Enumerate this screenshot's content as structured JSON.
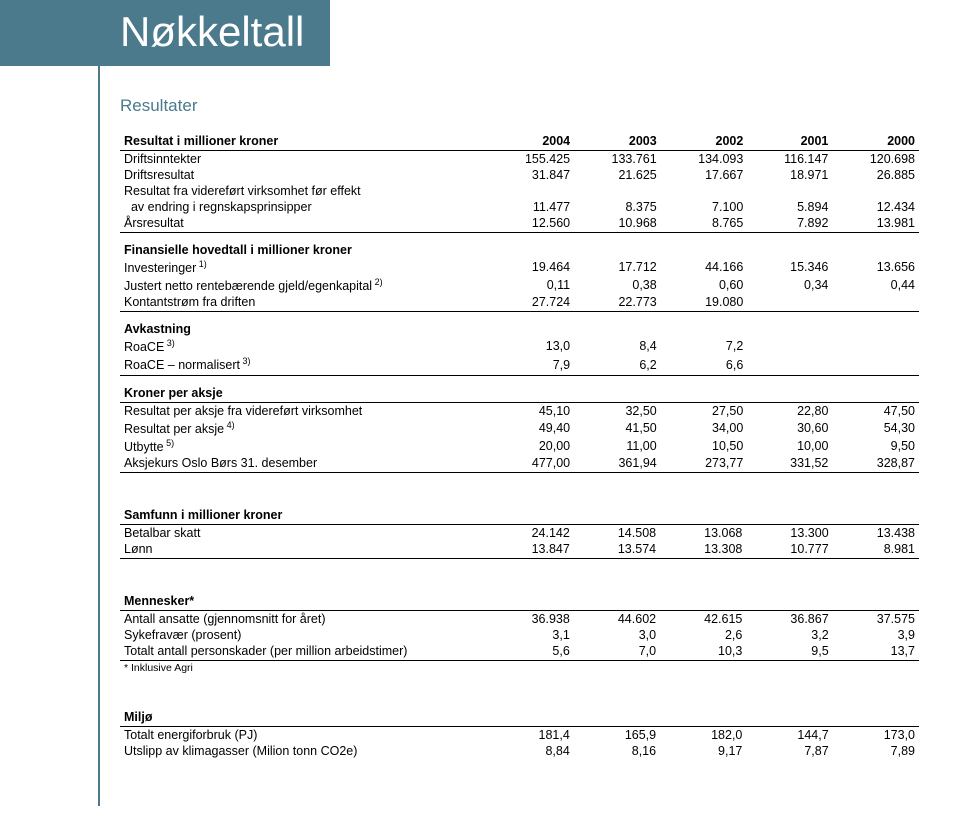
{
  "page": {
    "title": "Nøkkeltall",
    "subtitle": "Resultater",
    "colors": {
      "brand": "#4a7a8c",
      "text": "#000000",
      "bg": "#ffffff",
      "rule": "#000000"
    },
    "fontsizes": {
      "title": 42,
      "subtitle": 17,
      "body": 12.5,
      "note": 10.5
    }
  },
  "years": [
    "2004",
    "2003",
    "2002",
    "2001",
    "2000"
  ],
  "resultat": {
    "header_label": "Resultat i millioner kroner",
    "rows": [
      {
        "label": "Driftsinntekter",
        "v": [
          "155.425",
          "133.761",
          "134.093",
          "116.147",
          "120.698"
        ]
      },
      {
        "label": "Driftsresultat",
        "v": [
          "31.847",
          "21.625",
          "17.667",
          "18.971",
          "26.885"
        ]
      },
      {
        "label": "Resultat fra videreført virksomhet før effekt",
        "v": [
          "",
          "",
          "",
          "",
          ""
        ]
      },
      {
        "label": "  av endring i regnskapsprinsipper",
        "v": [
          "11.477",
          "8.375",
          "7.100",
          "5.894",
          "12.434"
        ]
      },
      {
        "label": "Årsresultat",
        "v": [
          "12.560",
          "10.968",
          "8.765",
          "7.892",
          "13.981"
        ]
      }
    ]
  },
  "finansielle": {
    "header_label": "Finansielle hovedtall i millioner kroner",
    "rows": [
      {
        "label": "Investeringer",
        "sup": "1)",
        "v": [
          "19.464",
          "17.712",
          "44.166",
          "15.346",
          "13.656"
        ]
      },
      {
        "label": "Justert netto rentebærende gjeld/egenkapital",
        "sup": "2)",
        "v": [
          "0,11",
          "0,38",
          "0,60",
          "0,34",
          "0,44"
        ]
      },
      {
        "label": "Kontantstrøm fra driften",
        "v": [
          "27.724",
          "22.773",
          "19.080",
          "",
          ""
        ]
      }
    ]
  },
  "avkastning": {
    "header_label": "Avkastning",
    "rows": [
      {
        "label": "RoaCE",
        "sup": "3)",
        "v": [
          "13,0",
          "8,4",
          "7,2",
          "",
          ""
        ]
      },
      {
        "label": "RoaCE – normalisert",
        "sup": "3)",
        "v": [
          "7,9",
          "6,2",
          "6,6",
          "",
          ""
        ]
      }
    ]
  },
  "kroner_per_aksje": {
    "header_label": "Kroner per aksje",
    "rows": [
      {
        "label": "Resultat per aksje fra videreført virksomhet",
        "v": [
          "45,10",
          "32,50",
          "27,50",
          "22,80",
          "47,50"
        ]
      },
      {
        "label": "Resultat per aksje",
        "sup": "4)",
        "v": [
          "49,40",
          "41,50",
          "34,00",
          "30,60",
          "54,30"
        ]
      },
      {
        "label": "Utbytte",
        "sup": "5)",
        "v": [
          "20,00",
          "11,00",
          "10,50",
          "10,00",
          "9,50"
        ]
      },
      {
        "label": "Aksjekurs Oslo Børs 31. desember",
        "v": [
          "477,00",
          "361,94",
          "273,77",
          "331,52",
          "328,87"
        ]
      }
    ]
  },
  "samfunn": {
    "header_label": "Samfunn i millioner kroner",
    "rows": [
      {
        "label": "Betalbar skatt",
        "v": [
          "24.142",
          "14.508",
          "13.068",
          "13.300",
          "13.438"
        ]
      },
      {
        "label": "Lønn",
        "v": [
          "13.847",
          "13.574",
          "13.308",
          "10.777",
          "8.981"
        ]
      }
    ]
  },
  "mennesker": {
    "header_label": "Mennesker*",
    "rows": [
      {
        "label": "Antall ansatte (gjennomsnitt for året)",
        "v": [
          "36.938",
          "44.602",
          "42.615",
          "36.867",
          "37.575"
        ]
      },
      {
        "label": "Sykefravær (prosent)",
        "v": [
          "3,1",
          "3,0",
          "2,6",
          "3,2",
          "3,9"
        ]
      },
      {
        "label": "Totalt antall personskader (per million arbeidstimer)",
        "v": [
          "5,6",
          "7,0",
          "10,3",
          "9,5",
          "13,7"
        ]
      }
    ],
    "note": "* Inklusive Agri"
  },
  "miljo": {
    "header_label": "Miljø",
    "rows": [
      {
        "label": "Totalt energiforbruk (PJ)",
        "v": [
          "181,4",
          "165,9",
          "182,0",
          "144,7",
          "173,0"
        ]
      },
      {
        "label": "Utslipp av klimagasser (Milion tonn CO2e)",
        "v": [
          "8,84",
          "8,16",
          "9,17",
          "7,87",
          "7,89"
        ]
      }
    ]
  }
}
